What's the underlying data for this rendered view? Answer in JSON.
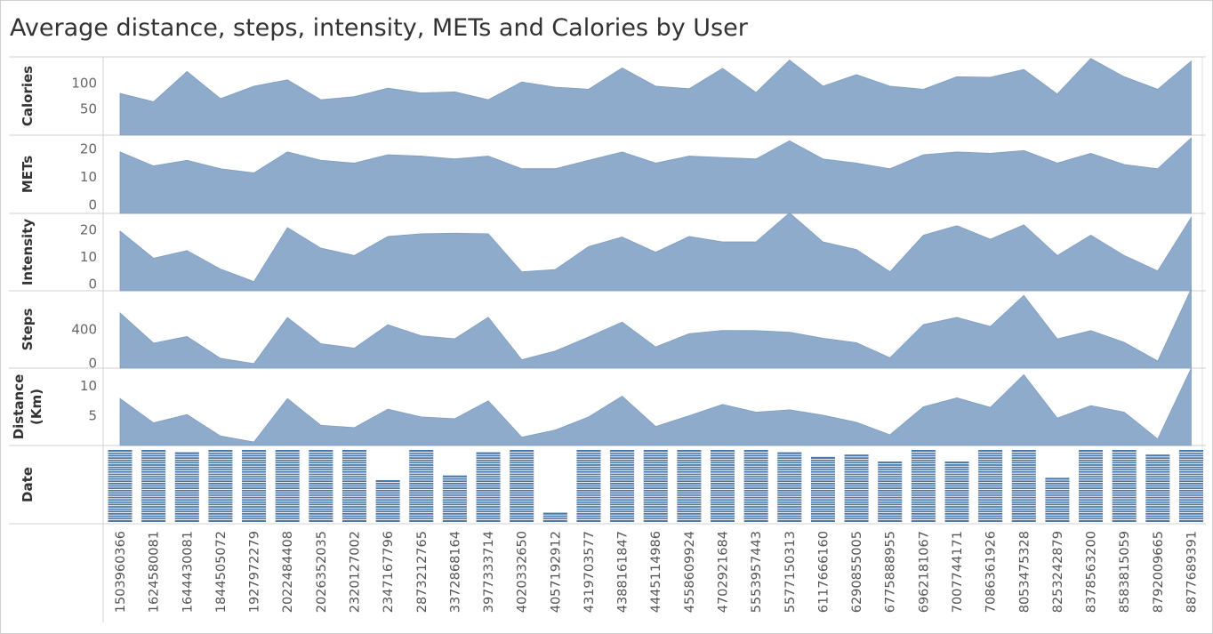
{
  "title": "Average distance, steps, intensity, METs and Calories by User",
  "chart_data": {
    "type": "area",
    "x_categories": [
      "1503960366",
      "1624580081",
      "1644430081",
      "1844505072",
      "1927972279",
      "2022484408",
      "2026352035",
      "2320127002",
      "2347167796",
      "2873212765",
      "3372868164",
      "3977333714",
      "4020332650",
      "4057192912",
      "4319703577",
      "4388161847",
      "4445114986",
      "4558609924",
      "4702921684",
      "5553957443",
      "5577150313",
      "6117666160",
      "6290855005",
      "6775888955",
      "6962181067",
      "7007744171",
      "7086361926",
      "8053475328",
      "8253242879",
      "8378563200",
      "8583815059",
      "8792009665",
      "8877689391"
    ],
    "color": "#8FABCB",
    "bar_color": "#4E79A7",
    "panels": [
      {
        "name": "Calories",
        "label": "Calories",
        "ticks": [
          "50",
          "100"
        ],
        "tick_values": [
          50,
          100
        ],
        "ylim": [
          0,
          150
        ],
        "values": [
          80,
          64,
          122,
          70,
          94,
          106,
          68,
          74,
          90,
          81,
          83,
          68,
          102,
          92,
          88,
          129,
          94,
          89,
          128,
          82,
          144,
          94,
          116,
          94,
          88,
          112,
          111,
          126,
          79,
          147,
          112,
          88,
          142
        ]
      },
      {
        "name": "METs",
        "label": "METs",
        "ticks": [
          "0",
          "10",
          "20"
        ],
        "tick_values": [
          0,
          10,
          20
        ],
        "ylim": [
          -3,
          25
        ],
        "values": [
          19,
          14,
          16,
          13,
          11.5,
          19,
          16,
          15,
          18,
          17.5,
          16.5,
          17.5,
          13,
          13,
          16,
          19,
          15,
          17.5,
          17,
          16.5,
          23,
          16.5,
          15,
          13,
          18,
          19,
          18.5,
          19.5,
          15,
          18.5,
          14.5,
          13,
          24
        ]
      },
      {
        "name": "Intensity",
        "label": "Intensity",
        "ticks": [
          "0",
          "10",
          "20"
        ],
        "tick_values": [
          0,
          10,
          20
        ],
        "ylim": [
          -2.5,
          26
        ],
        "values": [
          19.5,
          9.5,
          12.3,
          5.5,
          0.9,
          20.8,
          13.2,
          10.5,
          17.5,
          18.5,
          18.7,
          18.5,
          4.5,
          5.3,
          13.8,
          17.3,
          11.7,
          17.5,
          15.5,
          15.5,
          26.2,
          15.5,
          12.7,
          4.5,
          18,
          21.5,
          16.5,
          21.8,
          10.5,
          18,
          10.5,
          4.8,
          24.5
        ]
      },
      {
        "name": "Steps",
        "label": "Steps",
        "ticks": [
          "0",
          "400"
        ],
        "tick_values": [
          0,
          400
        ],
        "ylim": [
          -55,
          850
        ],
        "values": [
          591,
          238,
          315,
          60,
          -2,
          538,
          231,
          179,
          453,
          323,
          289,
          540,
          44,
          145,
          310,
          484,
          193,
          348,
          386,
          384,
          365,
          295,
          242,
          66,
          455,
          539,
          432,
          796,
          287,
          384,
          247,
          28,
          870
        ]
      },
      {
        "name": "Distance",
        "label": "Distance (Km)",
        "label_lines": [
          "Distance",
          "(Km)"
        ],
        "ticks": [
          "5",
          "10"
        ],
        "tick_values": [
          5,
          10
        ],
        "ylim": [
          0,
          13
        ],
        "values": [
          7.9,
          3.8,
          5.2,
          1.6,
          0.6,
          7.9,
          3.4,
          3.0,
          6.1,
          4.8,
          4.5,
          7.5,
          1.4,
          2.6,
          4.8,
          8.3,
          3.2,
          5.0,
          6.9,
          5.6,
          6.0,
          5.1,
          3.9,
          1.8,
          6.5,
          8.0,
          6.4,
          11.9,
          4.6,
          6.7,
          5.6,
          1.1,
          13.0
        ]
      },
      {
        "name": "Date",
        "label": "Date",
        "type": "bar",
        "max": 31,
        "values": [
          31,
          31,
          30,
          31,
          31,
          31,
          31,
          31,
          18,
          31,
          20,
          30,
          31,
          4,
          31,
          31,
          31,
          31,
          31,
          31,
          30,
          28,
          29,
          26,
          31,
          26,
          31,
          31,
          19,
          31,
          31,
          29,
          31
        ]
      }
    ]
  }
}
